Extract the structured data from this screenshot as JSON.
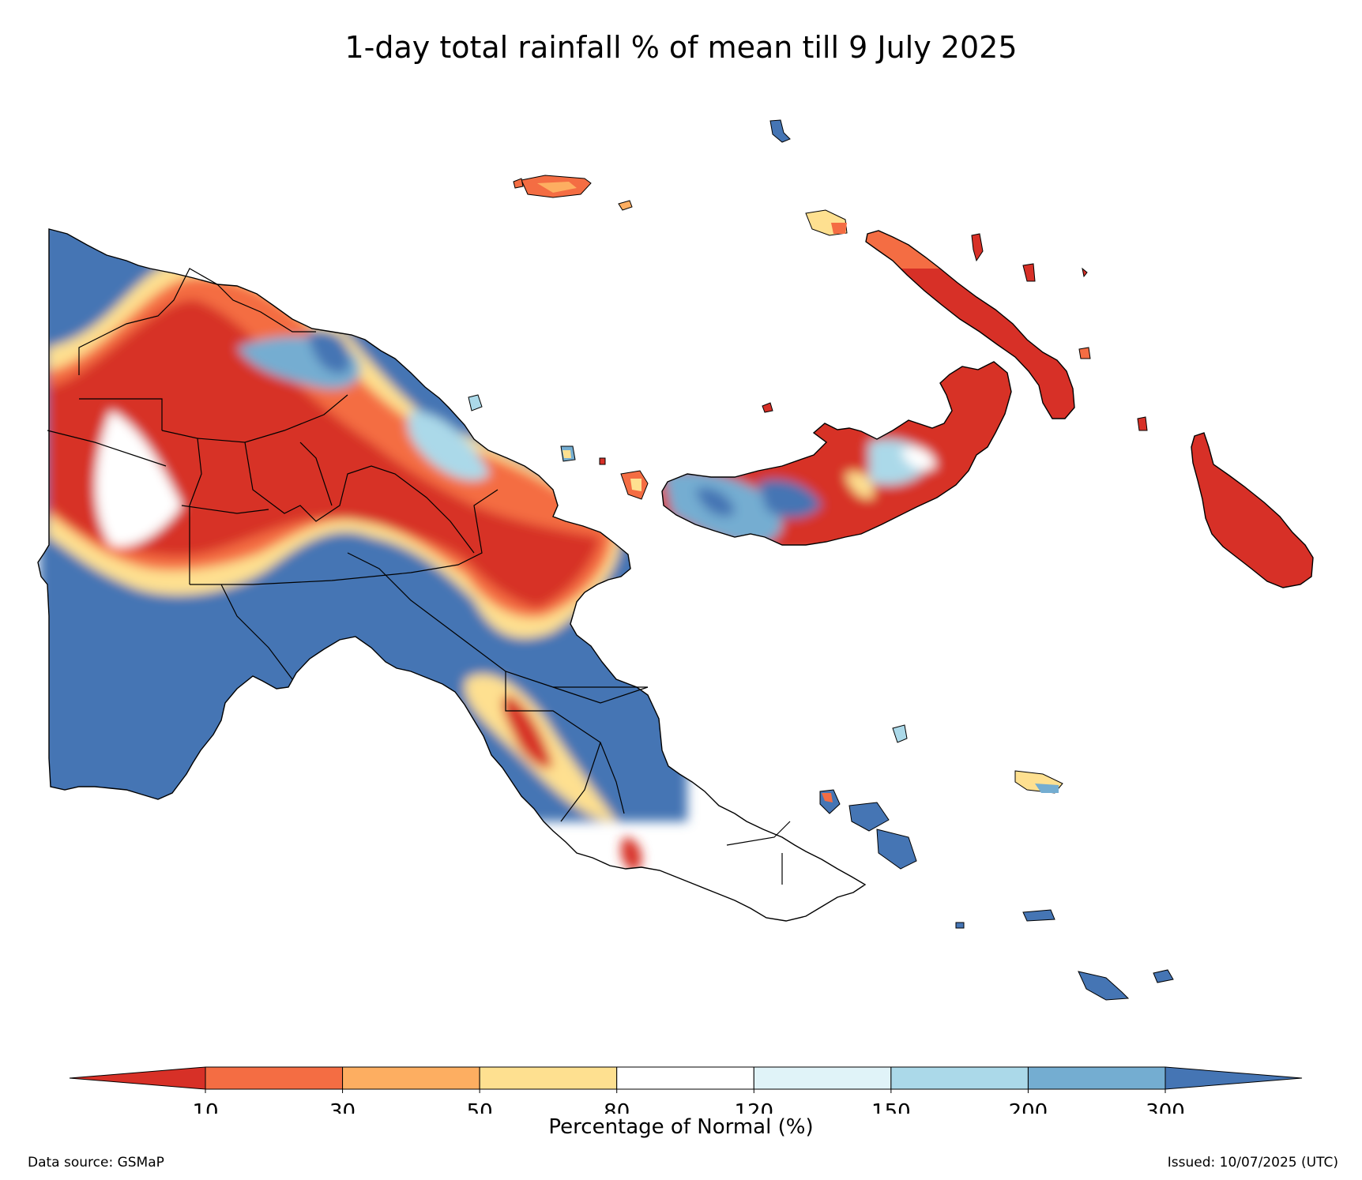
{
  "title": "1-day total rainfall % of mean till 9 July 2025",
  "colorbar": {
    "label": "Percentage of Normal (%)",
    "ticks": [
      "10",
      "30",
      "50",
      "80",
      "120",
      "150",
      "200",
      "300"
    ],
    "under_color": "#d73027",
    "over_color": "#4575b4",
    "bins": [
      {
        "from": 10,
        "to": 30,
        "color": "#f46d43"
      },
      {
        "from": 30,
        "to": 50,
        "color": "#fdae61"
      },
      {
        "from": 50,
        "to": 80,
        "color": "#fee090"
      },
      {
        "from": 80,
        "to": 120,
        "color": "#ffffff"
      },
      {
        "from": 120,
        "to": 150,
        "color": "#e0f3f8"
      },
      {
        "from": 150,
        "to": 200,
        "color": "#abd9e9"
      },
      {
        "from": 200,
        "to": 300,
        "color": "#74add1"
      }
    ]
  },
  "footer": {
    "source": "Data source: GSMaP",
    "issued": "Issued: 10/07/2025 (UTC)"
  }
}
